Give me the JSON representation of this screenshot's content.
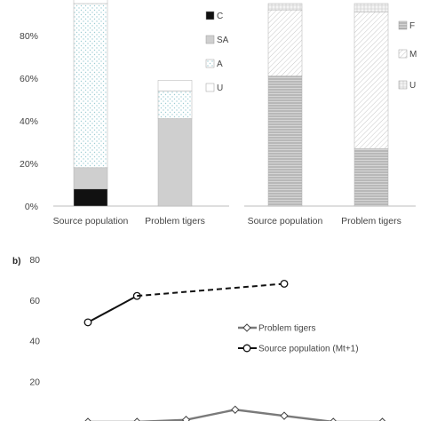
{
  "chart_data": [
    {
      "type": "bar",
      "stacked": true,
      "categories": [
        "Source population",
        "Problem tigers"
      ],
      "series": [
        {
          "name": "U",
          "values": [
            5,
            5
          ]
        },
        {
          "name": "A",
          "values": [
            77,
            13
          ]
        },
        {
          "name": "SA",
          "values": [
            10,
            41
          ]
        },
        {
          "name": "C",
          "values": [
            8,
            0
          ]
        }
      ],
      "yticks": [
        "0%",
        "20%",
        "40%",
        "60%",
        "80%"
      ],
      "ylim": [
        0,
        100
      ],
      "legend": "right",
      "grid": false
    },
    {
      "type": "bar",
      "stacked": true,
      "categories": [
        "Source population",
        "Problem tigers"
      ],
      "series": [
        {
          "name": "U",
          "values": [
            3,
            4
          ]
        },
        {
          "name": "M",
          "values": [
            31,
            64
          ]
        },
        {
          "name": "F",
          "values": [
            61,
            27
          ]
        }
      ],
      "ylim": [
        0,
        100
      ],
      "legend": "right",
      "grid": false
    },
    {
      "type": "line",
      "panel_label": "b)",
      "yticks": [
        "20",
        "40",
        "60",
        "80"
      ],
      "ylim": [
        0,
        80
      ],
      "series": [
        {
          "name": "Problem tigers",
          "marker": "diamond",
          "x": [
            1,
            2,
            3,
            4,
            5,
            6,
            7
          ],
          "y": [
            0,
            0,
            1,
            6,
            3,
            0,
            0
          ]
        },
        {
          "name": "Source population (Mt+1)",
          "marker": "circle",
          "x": [
            1,
            2
          ],
          "y": [
            49,
            62
          ]
        },
        {
          "name": "",
          "style": "dashed",
          "x": [
            2,
            5
          ],
          "y": [
            62,
            68
          ]
        }
      ],
      "legend": "center-right",
      "grid": false
    }
  ]
}
